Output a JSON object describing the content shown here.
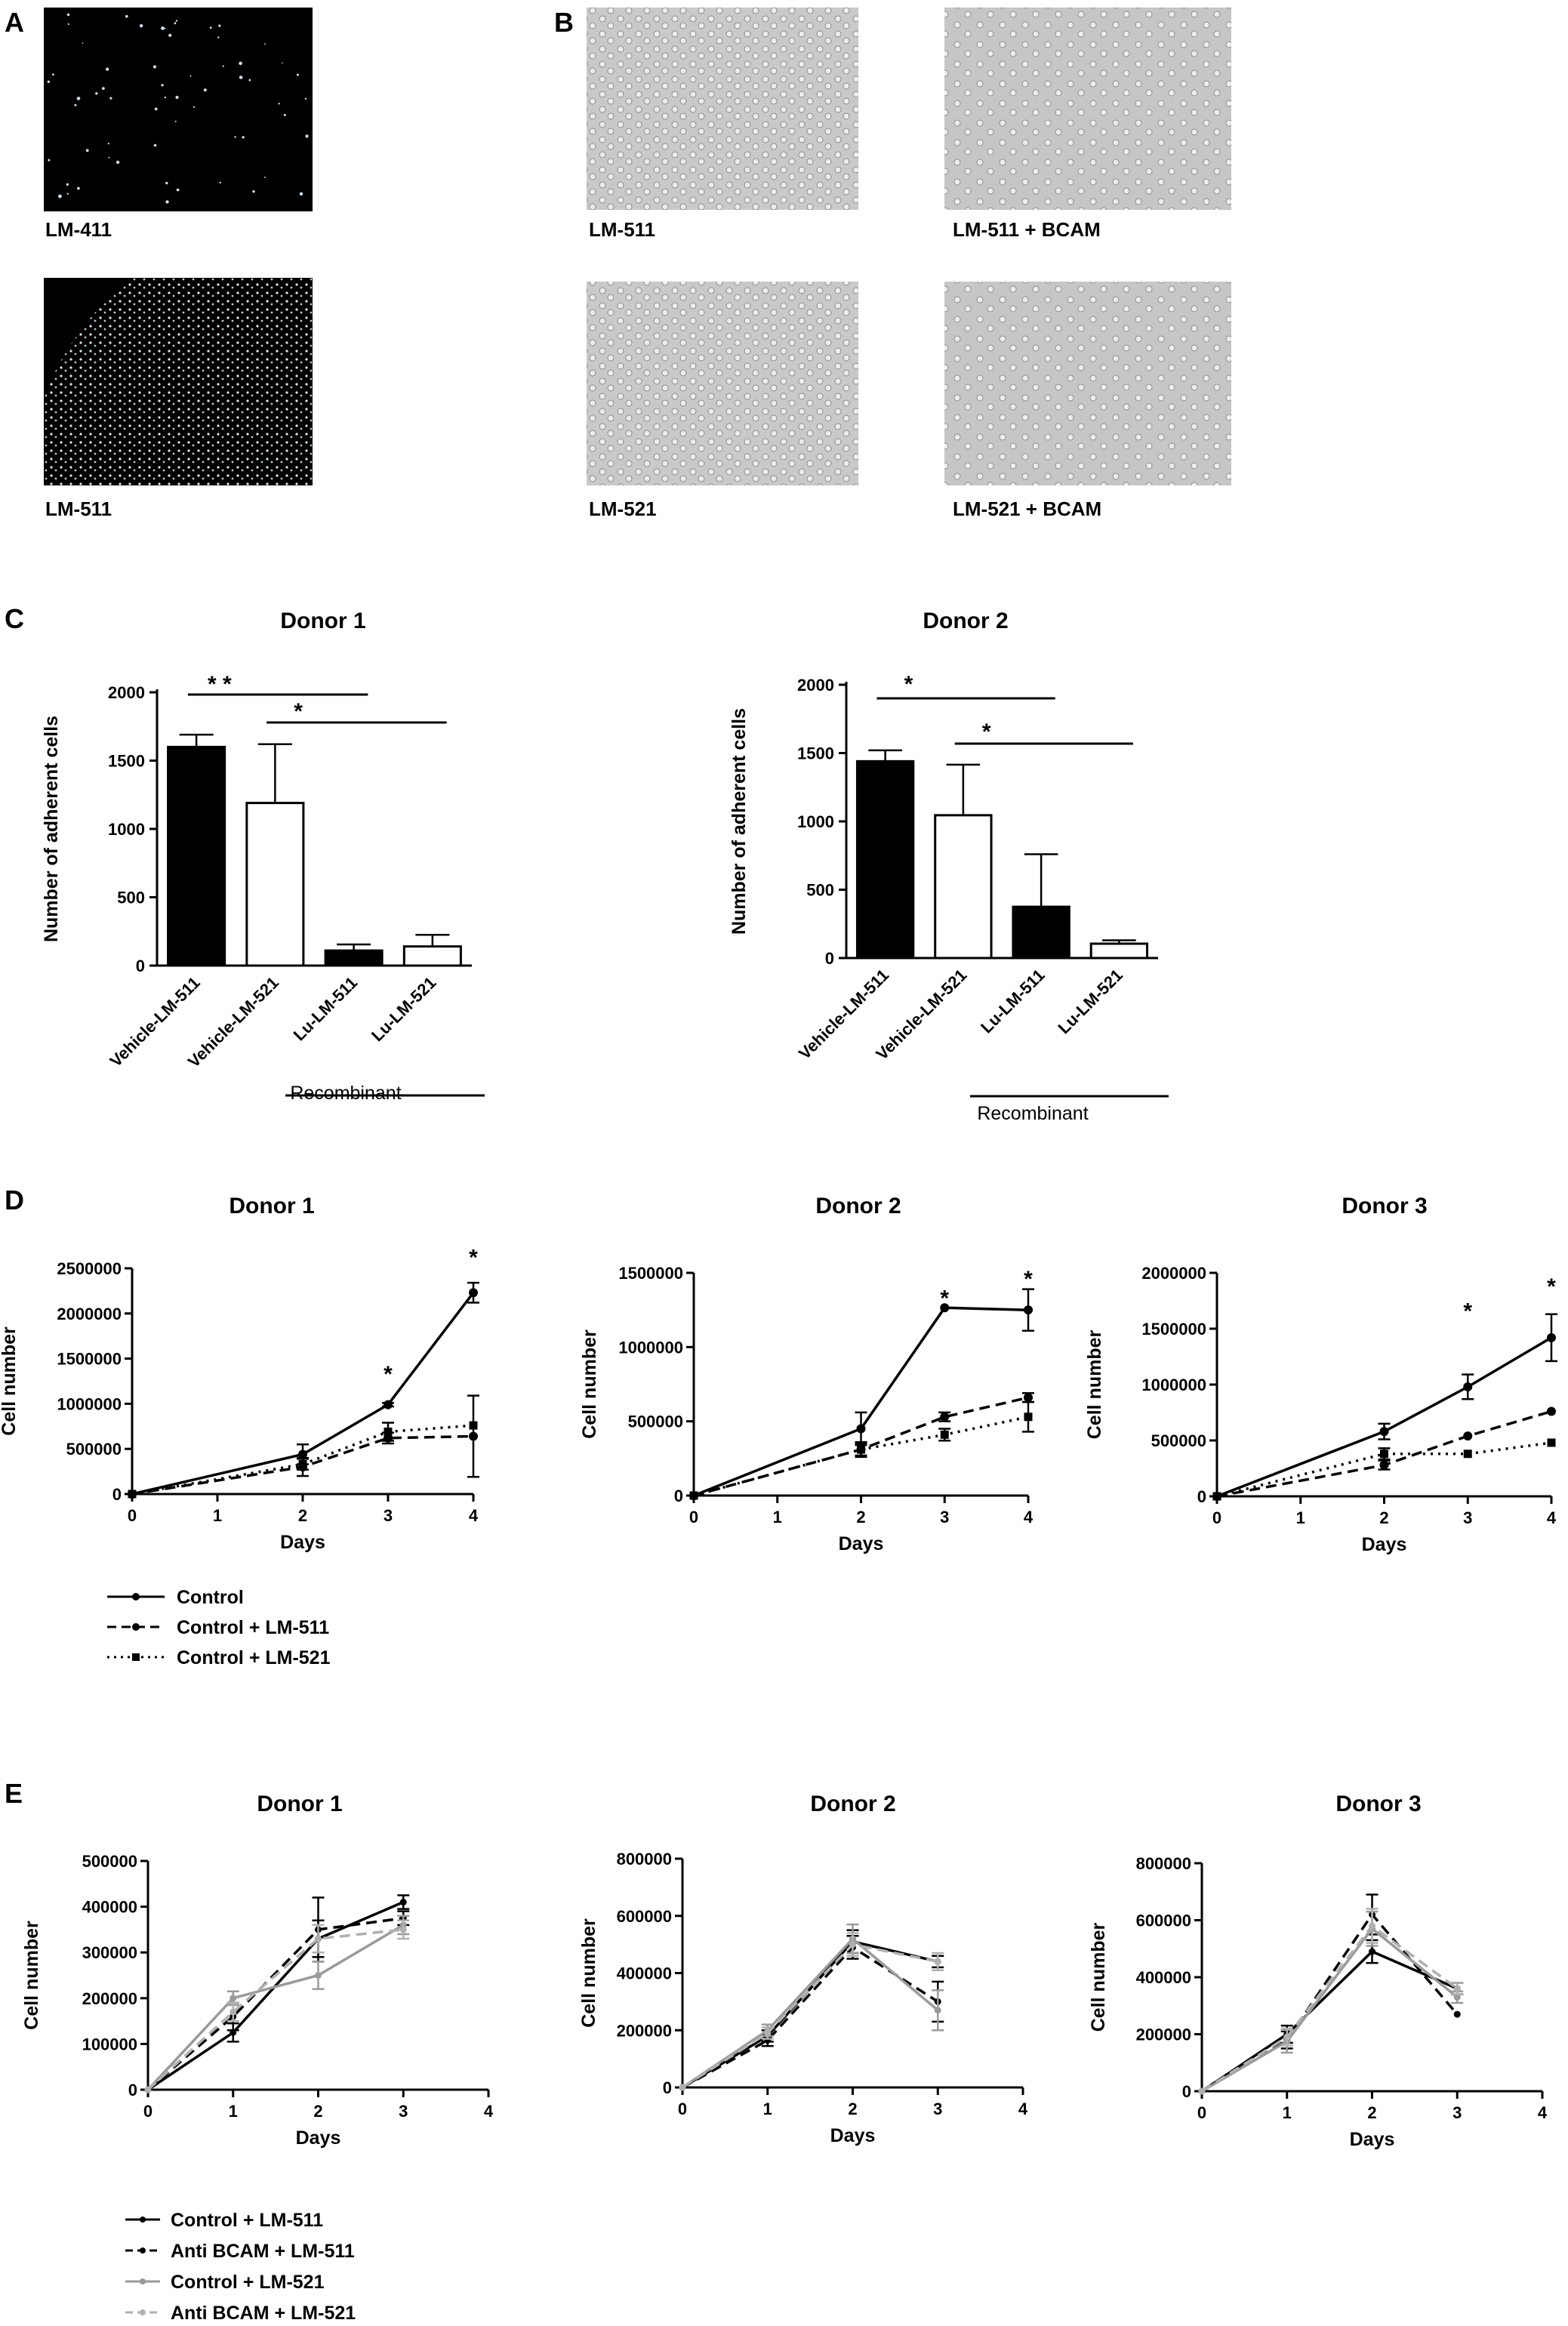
{
  "figure": {
    "panel_labels": [
      "A",
      "B",
      "C",
      "D",
      "E"
    ],
    "images_A": [
      "LM-411",
      "LM-511"
    ],
    "images_B": [
      "LM-511",
      "LM-511 + BCAM",
      "LM-521",
      "LM-521 + BCAM"
    ],
    "legend_D": [
      "Control",
      "Control + LM-511",
      "Control + LM-521"
    ],
    "legend_E": [
      "Control  + LM-511",
      "Anti BCAM + LM-511",
      "Control + LM-521",
      "Anti BCAM + LM-521"
    ],
    "colors": {
      "black": "#000000",
      "gray": "#9a9a9a",
      "lightgray": "#b0b0b0"
    }
  },
  "chart_data": [
    {
      "id": "C1",
      "type": "bar",
      "title": "Donor 1",
      "ylabel": "Number of adherent cells",
      "xlabel": "",
      "categories": [
        "Vehicle-LM-511",
        "Vehicle-LM-521",
        "Lu-LM-511",
        "Lu-LM-521"
      ],
      "values": [
        1600,
        1190,
        110,
        140
      ],
      "errors": [
        90,
        430,
        45,
        85
      ],
      "fills": [
        "black",
        "white",
        "black",
        "white"
      ],
      "ylim": [
        0,
        2000
      ],
      "yticks": [
        0,
        500,
        1000,
        1500,
        2000
      ],
      "group_label": "Recombinant",
      "significance": [
        {
          "from": 0,
          "to": 2,
          "label": "* *"
        },
        {
          "from": 1,
          "to": 3,
          "label": "*"
        }
      ]
    },
    {
      "id": "C2",
      "type": "bar",
      "title": "Donor 2",
      "ylabel": "Number of adherent cells",
      "xlabel": "",
      "categories": [
        "Vehicle-LM-511",
        "Vehicle-LM-521",
        "Lu-LM-511",
        "Lu-LM-521"
      ],
      "values": [
        1440,
        1045,
        375,
        105
      ],
      "errors": [
        80,
        370,
        385,
        25
      ],
      "fills": [
        "black",
        "white",
        "black",
        "white"
      ],
      "ylim": [
        0,
        2000
      ],
      "yticks": [
        0,
        500,
        1000,
        1500,
        2000
      ],
      "group_label": "Recombinant",
      "significance": [
        {
          "from": 0,
          "to": 2,
          "label": "*"
        },
        {
          "from": 1,
          "to": 3,
          "label": "*"
        }
      ]
    },
    {
      "id": "D1",
      "type": "line",
      "title": "Donor 1",
      "xlabel": "Days",
      "ylabel": "Cell number",
      "xlim": [
        0,
        4
      ],
      "xticks": [
        0,
        1,
        2,
        3,
        4
      ],
      "ylim": [
        0,
        2500000
      ],
      "yticks": [
        0,
        500000,
        1000000,
        1500000,
        2000000,
        2500000
      ],
      "series": [
        {
          "name": "Control",
          "x": [
            0,
            2,
            3,
            4
          ],
          "y": [
            0,
            440000,
            990000,
            2230000
          ],
          "err": [
            0,
            110000,
            20000,
            110000
          ],
          "style": "solid",
          "color": "black",
          "marker": "circle"
        },
        {
          "name": "Control + LM-511",
          "x": [
            0,
            2,
            3,
            4
          ],
          "y": [
            0,
            300000,
            620000,
            640000
          ],
          "err": [
            0,
            100000,
            60000,
            450000
          ],
          "style": "dashed",
          "color": "black",
          "marker": "circle"
        },
        {
          "name": "Control + LM-521",
          "x": [
            0,
            2,
            3,
            4
          ],
          "y": [
            0,
            330000,
            690000,
            760000
          ],
          "err": [
            0,
            60000,
            100000,
            0
          ],
          "style": "dotted",
          "color": "black",
          "marker": "square"
        }
      ],
      "stars": [
        {
          "x": 3,
          "y": 1330000,
          "label": "*"
        },
        {
          "x": 4,
          "y": 2620000,
          "label": "*"
        }
      ]
    },
    {
      "id": "D2",
      "type": "line",
      "title": "Donor 2",
      "xlabel": "Days",
      "ylabel": "Cell number",
      "xlim": [
        0,
        4
      ],
      "xticks": [
        0,
        1,
        2,
        3,
        4
      ],
      "ylim": [
        0,
        1500000
      ],
      "yticks": [
        0,
        500000,
        1000000,
        1500000
      ],
      "series": [
        {
          "name": "Control",
          "x": [
            0,
            2,
            3,
            4
          ],
          "y": [
            0,
            450000,
            1265000,
            1250000
          ],
          "err": [
            0,
            110000,
            0,
            140000
          ],
          "style": "solid",
          "color": "black",
          "marker": "circle"
        },
        {
          "name": "Control + LM-511",
          "x": [
            0,
            2,
            3,
            4
          ],
          "y": [
            0,
            310000,
            530000,
            660000
          ],
          "err": [
            0,
            50000,
            30000,
            30000
          ],
          "style": "dashed",
          "color": "black",
          "marker": "circle"
        },
        {
          "name": "Control + LM-521",
          "x": [
            0,
            2,
            3,
            4
          ],
          "y": [
            0,
            310000,
            410000,
            530000
          ],
          "err": [
            0,
            40000,
            40000,
            100000
          ],
          "style": "dotted",
          "color": "black",
          "marker": "square"
        }
      ],
      "stars": [
        {
          "x": 3,
          "y": 1330000,
          "label": "*"
        },
        {
          "x": 4,
          "y": 1460000,
          "label": "*"
        }
      ]
    },
    {
      "id": "D3",
      "type": "line",
      "title": "Donor 3",
      "xlabel": "Days",
      "ylabel": "Cell number",
      "xlim": [
        0,
        4
      ],
      "xticks": [
        0,
        1,
        2,
        3,
        4
      ],
      "ylim": [
        0,
        2000000
      ],
      "yticks": [
        0,
        500000,
        1000000,
        1500000,
        2000000
      ],
      "series": [
        {
          "name": "Control",
          "x": [
            0,
            2,
            3,
            4
          ],
          "y": [
            0,
            580000,
            980000,
            1420000
          ],
          "err": [
            0,
            70000,
            110000,
            210000
          ],
          "style": "solid",
          "color": "black",
          "marker": "circle"
        },
        {
          "name": "Control + LM-511",
          "x": [
            0,
            2,
            3,
            4
          ],
          "y": [
            0,
            280000,
            540000,
            760000
          ],
          "err": [
            0,
            40000,
            0,
            0
          ],
          "style": "dashed",
          "color": "black",
          "marker": "circle"
        },
        {
          "name": "Control + LM-521",
          "x": [
            0,
            2,
            3,
            4
          ],
          "y": [
            0,
            380000,
            380000,
            480000
          ],
          "err": [
            0,
            50000,
            0,
            0
          ],
          "style": "dotted",
          "color": "black",
          "marker": "square"
        }
      ],
      "stars": [
        {
          "x": 3,
          "y": 1660000,
          "label": "*"
        },
        {
          "x": 4,
          "y": 1880000,
          "label": "*"
        }
      ]
    },
    {
      "id": "E1",
      "type": "line",
      "title": "Donor 1",
      "xlabel": "Days",
      "ylabel": "Cell number",
      "xlim": [
        0,
        4
      ],
      "xticks": [
        0,
        1,
        2,
        3,
        4
      ],
      "ylim": [
        0,
        500000
      ],
      "yticks": [
        0,
        100000,
        200000,
        300000,
        400000,
        500000
      ],
      "series": [
        {
          "name": "Control  + LM-511",
          "x": [
            0,
            1,
            2,
            3
          ],
          "y": [
            0,
            125000,
            330000,
            410000
          ],
          "err": [
            0,
            20000,
            40000,
            15000
          ],
          "style": "solid",
          "color": "black"
        },
        {
          "name": "Anti BCAM + LM-511",
          "x": [
            0,
            1,
            2,
            3
          ],
          "y": [
            0,
            160000,
            350000,
            375000
          ],
          "err": [
            0,
            30000,
            70000,
            15000
          ],
          "style": "dashed",
          "color": "black"
        },
        {
          "name": "Control + LM-521",
          "x": [
            0,
            1,
            2,
            3
          ],
          "y": [
            0,
            200000,
            250000,
            360000
          ],
          "err": [
            0,
            15000,
            30000,
            20000
          ],
          "style": "solid",
          "color": "gray"
        },
        {
          "name": "Anti BCAM + LM-521",
          "x": [
            0,
            1,
            2,
            3
          ],
          "y": [
            0,
            170000,
            330000,
            350000
          ],
          "err": [
            0,
            20000,
            30000,
            20000
          ],
          "style": "dashed",
          "color": "lightgray"
        }
      ]
    },
    {
      "id": "E2",
      "type": "line",
      "title": "Donor 2",
      "xlabel": "Days",
      "ylabel": "Cell number",
      "xlim": [
        0,
        4
      ],
      "xticks": [
        0,
        1,
        2,
        3,
        4
      ],
      "ylim": [
        0,
        800000
      ],
      "yticks": [
        0,
        200000,
        400000,
        600000,
        800000
      ],
      "series": [
        {
          "name": "Control  + LM-511",
          "x": [
            0,
            1,
            2,
            3
          ],
          "y": [
            0,
            180000,
            510000,
            440000
          ],
          "err": [
            0,
            20000,
            40000,
            20000
          ],
          "style": "solid",
          "color": "black"
        },
        {
          "name": "Anti BCAM + LM-511",
          "x": [
            0,
            1,
            2,
            3
          ],
          "y": [
            0,
            165000,
            490000,
            300000
          ],
          "err": [
            0,
            20000,
            40000,
            70000
          ],
          "style": "dashed",
          "color": "black"
        },
        {
          "name": "Control + LM-521",
          "x": [
            0,
            1,
            2,
            3
          ],
          "y": [
            0,
            200000,
            520000,
            270000
          ],
          "err": [
            0,
            20000,
            50000,
            70000
          ],
          "style": "solid",
          "color": "gray"
        },
        {
          "name": "Anti BCAM + LM-521",
          "x": [
            0,
            1,
            2,
            3
          ],
          "y": [
            0,
            190000,
            500000,
            440000
          ],
          "err": [
            0,
            20000,
            40000,
            30000
          ],
          "style": "dashed",
          "color": "lightgray"
        }
      ]
    },
    {
      "id": "E3",
      "type": "line",
      "title": "Donor 3",
      "xlabel": "Days",
      "ylabel": "Cell number",
      "xlim": [
        0,
        4
      ],
      "xticks": [
        0,
        1,
        2,
        3,
        4
      ],
      "ylim": [
        0,
        800000
      ],
      "yticks": [
        0,
        200000,
        400000,
        600000,
        800000
      ],
      "series": [
        {
          "name": "Control  + LM-511",
          "x": [
            0,
            1,
            2,
            3
          ],
          "y": [
            0,
            200000,
            490000,
            360000
          ],
          "err": [
            0,
            30000,
            40000,
            20000
          ],
          "style": "solid",
          "color": "black"
        },
        {
          "name": "Anti BCAM + LM-511",
          "x": [
            0,
            1,
            2,
            3
          ],
          "y": [
            0,
            180000,
            620000,
            270000
          ],
          "err": [
            0,
            30000,
            70000,
            0
          ],
          "style": "dashed",
          "color": "black"
        },
        {
          "name": "Control + LM-521",
          "x": [
            0,
            1,
            2,
            3
          ],
          "y": [
            0,
            175000,
            570000,
            330000
          ],
          "err": [
            0,
            40000,
            60000,
            20000
          ],
          "style": "solid",
          "color": "gray"
        },
        {
          "name": "Anti BCAM + LM-521",
          "x": [
            0,
            1,
            2,
            3
          ],
          "y": [
            0,
            190000,
            580000,
            360000
          ],
          "err": [
            0,
            30000,
            60000,
            20000
          ],
          "style": "dashed",
          "color": "lightgray"
        }
      ]
    }
  ]
}
